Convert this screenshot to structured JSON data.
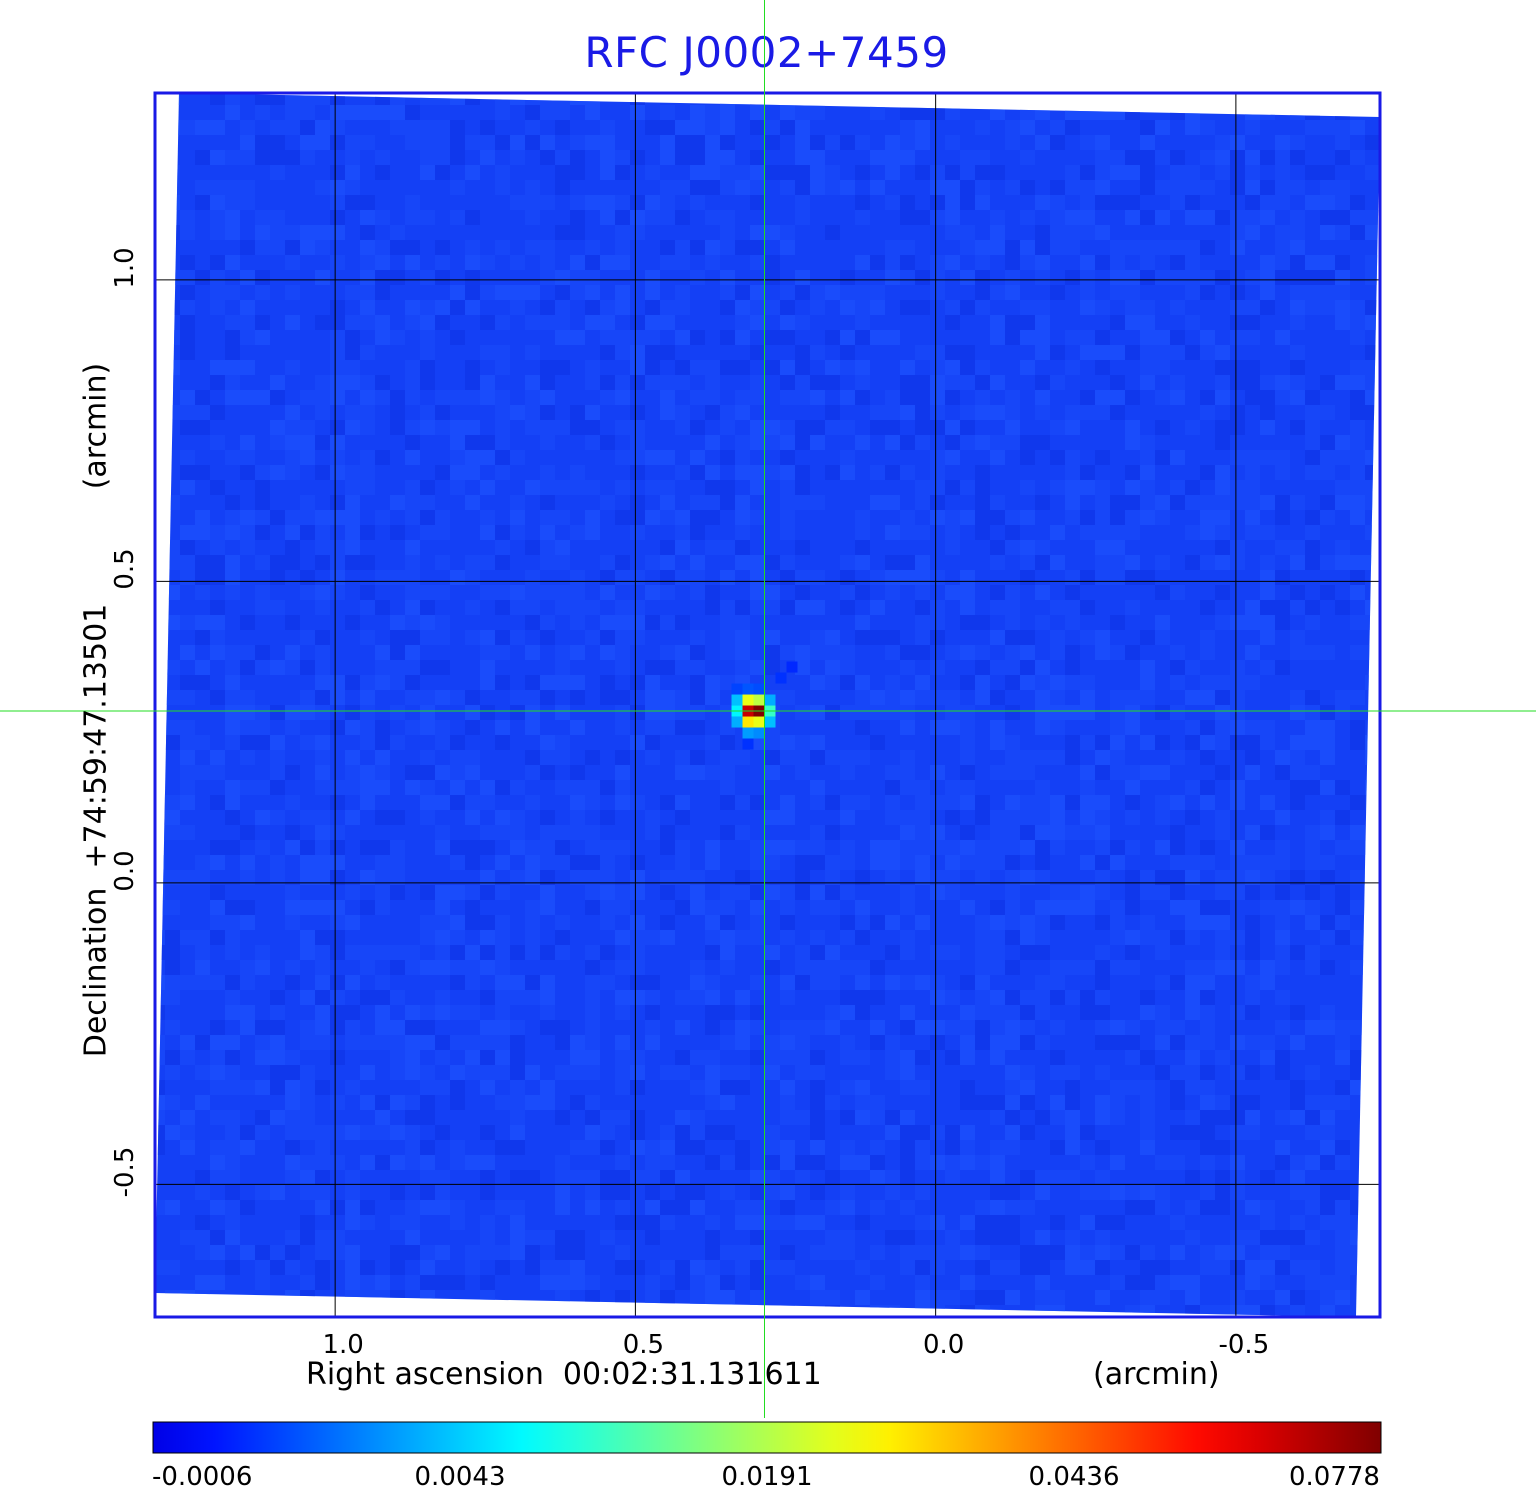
{
  "chart_data": {
    "type": "heatmap",
    "title": "RFC J0002+7459",
    "xlabel": "Right ascension  00:02:31.131611",
    "xunit": "(arcmin)",
    "ylabel": "Declination  +74:59:47.13501",
    "yunit": "(arcmin)",
    "x_ticks": [
      "1.0",
      "0.5",
      "0.0",
      "-0.5"
    ],
    "x_tick_values": [
      1.0,
      0.5,
      0.0,
      -0.5
    ],
    "y_ticks": [
      "1.0",
      "0.5",
      "0.0",
      "-0.5"
    ],
    "y_tick_values": [
      1.0,
      0.5,
      0.0,
      -0.5
    ],
    "xlim": [
      1.3,
      -0.74
    ],
    "ylim": [
      -0.72,
      1.31
    ],
    "grid": true,
    "colormap": "jet",
    "colorbar_ticks": [
      "-0.0006",
      "0.0043",
      "0.0191",
      "0.0436",
      "0.0778"
    ],
    "colorbar_range": [
      -0.0006,
      0.0778
    ],
    "source": {
      "x": 0.285,
      "y": 0.285,
      "peak": 0.0778
    },
    "crosshair": {
      "x": 0.285,
      "y": 0.285
    },
    "background_level": -0.0006
  },
  "colors": {
    "title": "#1a1ae6",
    "frame": "#1a1ae6",
    "crosshair": "#22dd22",
    "grid": "#000000"
  }
}
